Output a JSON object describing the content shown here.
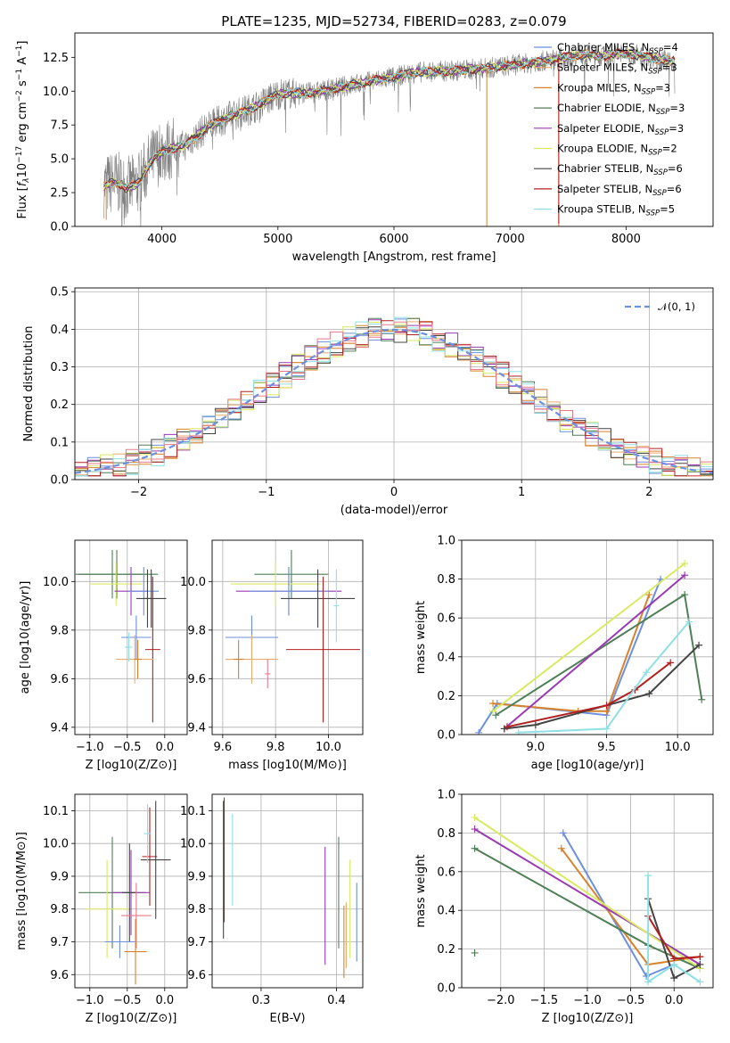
{
  "chart_data": [
    {
      "id": "spectrum",
      "type": "line",
      "title": "PLATE=1235, MJD=52734, FIBERID=0283, z=0.079",
      "xlabel": "wavelength [Angstrom, rest frame]",
      "ylabel": "Flux [f_λ 10^-17 erg cm^-2 s^-1 A^-1]",
      "ylabel_parts": {
        "a": "Flux [",
        "b": "f",
        "c": "λ",
        "d": "10",
        "e": "−17",
        "f": " erg cm",
        "g": "−2",
        "h": " s",
        "i": "−1",
        "j": " A",
        "k": "−1",
        "l": "]"
      },
      "xlim": [
        3250,
        8750
      ],
      "ylim": [
        0,
        14.3
      ],
      "xticks": [
        4000,
        5000,
        6000,
        7000,
        8000
      ],
      "yticks": [
        0.0,
        2.5,
        5.0,
        7.5,
        10.0,
        12.5
      ],
      "legend_position": "right",
      "legend": [
        {
          "name": "Chabrier MILES",
          "n": "4",
          "color": "#6c8fde"
        },
        {
          "name": "Salpeter MILES",
          "n": "3",
          "color": "#e8ac6c"
        },
        {
          "name": "Kroupa MILES",
          "n": "3",
          "color": "#d7822d"
        },
        {
          "name": "Chabrier ELODIE",
          "n": "3",
          "color": "#4f7f55"
        },
        {
          "name": "Salpeter ELODIE",
          "n": "3",
          "color": "#9a3ab3"
        },
        {
          "name": "Kroupa ELODIE",
          "n": "2",
          "color": "#d9ea62"
        },
        {
          "name": "Chabrier STELIB",
          "n": "6",
          "color": "#444444"
        },
        {
          "name": "Salpeter STELIB",
          "n": "6",
          "color": "#b22020"
        },
        {
          "name": "Kroupa STELIB",
          "n": "5",
          "color": "#8fe0e4"
        }
      ],
      "n_label": "N",
      "n_sub": "SSP",
      "data_color": "#808080",
      "continuum": {
        "x": [
          3500,
          3600,
          3700,
          3800,
          3900,
          4000,
          4100,
          4200,
          4400,
          4600,
          4800,
          5000,
          5300,
          5600,
          5900,
          6200,
          6500,
          6800,
          7000,
          7200,
          7400,
          7600,
          7800,
          8000,
          8200,
          8400
        ],
        "y": [
          3.0,
          3.3,
          2.8,
          3.2,
          4.8,
          5.5,
          5.8,
          6.0,
          7.4,
          8.2,
          8.8,
          9.8,
          9.9,
          10.4,
          10.9,
          11.4,
          11.5,
          11.7,
          11.9,
          12.1,
          12.4,
          12.7,
          12.6,
          12.8,
          12.5,
          12.2
        ]
      }
    },
    {
      "id": "residuals",
      "type": "bar",
      "xlabel": "(data-model)/error",
      "ylabel": "Normed distribution",
      "xlim": [
        -2.5,
        2.5
      ],
      "ylim": [
        0,
        0.51
      ],
      "xticks": [
        -2,
        -1,
        0,
        1,
        2
      ],
      "yticks": [
        0.0,
        0.1,
        0.2,
        0.3,
        0.4,
        0.5
      ],
      "legend": "𝒩(0, 1)",
      "legend_position": "top-right",
      "curve_color": "#6c8fde",
      "bin_edges_start": -2.5,
      "bin_width": 0.1,
      "base_values": [
        0.03,
        0.04,
        0.05,
        0.05,
        0.06,
        0.06,
        0.08,
        0.09,
        0.1,
        0.12,
        0.14,
        0.15,
        0.16,
        0.17,
        0.18,
        0.19,
        0.2,
        0.21,
        0.23,
        0.26,
        0.27,
        0.29,
        0.31,
        0.33,
        0.35,
        0.37,
        0.38,
        0.4,
        0.4,
        0.41,
        0.41,
        0.4,
        0.39,
        0.4,
        0.38,
        0.38,
        0.36,
        0.35,
        0.34,
        0.3,
        0.29,
        0.26,
        0.22,
        0.21,
        0.2,
        0.17,
        0.14,
        0.12,
        0.1,
        0.08,
        0.07,
        0.06,
        0.05,
        0.05,
        0.05,
        0.04,
        0.04,
        0.04,
        0.03,
        0.03,
        0.03,
        0.03,
        0.03,
        0.03,
        0.03,
        0.03,
        0.02,
        0.02,
        0.02,
        0.02,
        0.02,
        0.02,
        0.02,
        0.02,
        0.02,
        0.02,
        0.02,
        0.02,
        0.02,
        0.02,
        0.02,
        0.02,
        0.02,
        0.02,
        0.02,
        0.02,
        0.02,
        0.02,
        0.02,
        0.02,
        0.02,
        0.02,
        0.02,
        0.02,
        0.02,
        0.02,
        0.02,
        0.02,
        0.02,
        0.02
      ],
      "series_colors": [
        "#6c8fde",
        "#e8ac6c",
        "#d7822d",
        "#4f7f55",
        "#9a3ab3",
        "#d9ea62",
        "#444444",
        "#b22020",
        "#8fe0e4",
        "#e87a8a"
      ]
    },
    {
      "id": "age_vs_Z",
      "type": "scatter",
      "xlabel": "Z [log10(Z/Z⊙)]",
      "ylabel": "age  [log10(age/yr)]",
      "xlim": [
        -1.2,
        0.3
      ],
      "ylim": [
        9.37,
        10.17
      ],
      "xticks": [
        -1.0,
        -0.5,
        0.0
      ],
      "yticks": [
        9.4,
        9.6,
        9.8,
        10.0
      ],
      "points": [
        {
          "x": -0.7,
          "xerr": 0.45,
          "y": 10.03,
          "yerr": 0.1,
          "color": "#4f7f55"
        },
        {
          "x": -0.64,
          "xerr": 0.55,
          "y": 10.03,
          "yerr": 0.1,
          "color": "#4f7f55"
        },
        {
          "x": -0.65,
          "xerr": 0.35,
          "y": 9.99,
          "yerr": 0.09,
          "color": "#d9ea62"
        },
        {
          "x": -0.45,
          "xerr": 0.22,
          "y": 9.96,
          "yerr": 0.1,
          "color": "#9a3ab3"
        },
        {
          "x": -0.28,
          "xerr": 0.2,
          "y": 9.96,
          "yerr": 0.1,
          "color": "#6c8fde"
        },
        {
          "x": -0.18,
          "xerr": 0.2,
          "y": 9.93,
          "yerr": 0.12,
          "color": "#444444"
        },
        {
          "x": -0.23,
          "xerr": 0.05,
          "y": 9.93,
          "yerr": 0.12,
          "color": "#444444"
        },
        {
          "x": -0.38,
          "xerr": 0.2,
          "y": 9.77,
          "yerr": 0.09,
          "color": "#6c8fde"
        },
        {
          "x": -0.16,
          "xerr": 0.1,
          "y": 9.72,
          "yerr": 0.3,
          "color": "#b22020"
        },
        {
          "x": -0.4,
          "xerr": 0.25,
          "y": 9.68,
          "yerr": 0.1,
          "color": "#e8ac6c"
        },
        {
          "x": -0.36,
          "xerr": 0.05,
          "y": 9.68,
          "yerr": 0.08,
          "color": "#d7822d"
        },
        {
          "x": -0.48,
          "xerr": 0.05,
          "y": 9.73,
          "yerr": 0.06,
          "color": "#8fe0e4"
        }
      ]
    },
    {
      "id": "age_vs_mass",
      "type": "scatter",
      "xlabel": "mass [log10(M/M⊙)]",
      "xlim": [
        9.56,
        10.13
      ],
      "ylim": [
        9.37,
        10.17
      ],
      "xticks": [
        9.6,
        9.8,
        10.0
      ],
      "yticks": [
        9.4,
        9.6,
        9.8,
        10.0
      ],
      "points": [
        {
          "x": 9.86,
          "xerr": 0.14,
          "y": 10.03,
          "yerr": 0.1,
          "color": "#4f7f55"
        },
        {
          "x": 9.8,
          "xerr": 0.17,
          "y": 9.99,
          "yerr": 0.09,
          "color": "#d9ea62"
        },
        {
          "x": 9.85,
          "xerr": 0.2,
          "y": 9.96,
          "yerr": 0.1,
          "color": "#9a3ab3"
        },
        {
          "x": 9.85,
          "xerr": 0.15,
          "y": 9.96,
          "yerr": 0.1,
          "color": "#6c8fde"
        },
        {
          "x": 9.96,
          "xerr": 0.14,
          "y": 9.93,
          "yerr": 0.12,
          "color": "#444444"
        },
        {
          "x": 9.71,
          "xerr": 0.1,
          "y": 9.77,
          "yerr": 0.09,
          "color": "#6c8fde"
        },
        {
          "x": 9.98,
          "xerr": 0.14,
          "y": 9.72,
          "yerr": 0.3,
          "color": "#b22020"
        },
        {
          "x": 9.71,
          "xerr": 0.1,
          "y": 9.68,
          "yerr": 0.1,
          "color": "#e8ac6c"
        },
        {
          "x": 9.66,
          "xerr": 0.02,
          "y": 9.68,
          "yerr": 0.08,
          "color": "#d7822d"
        },
        {
          "x": 10.03,
          "xerr": 0.01,
          "y": 9.9,
          "yerr": 0.15,
          "color": "#8fe0e4"
        },
        {
          "x": 9.77,
          "xerr": 0.01,
          "y": 9.62,
          "yerr": 0.06,
          "color": "#e87a8a"
        }
      ]
    },
    {
      "id": "weight_vs_age",
      "type": "line",
      "xlabel": "age  [log10(age/yr)]",
      "ylabel": "mass weight",
      "xlim": [
        8.48,
        10.25
      ],
      "ylim": [
        0,
        1
      ],
      "xticks": [
        9.0,
        9.5,
        10.0
      ],
      "yticks": [
        0.0,
        0.2,
        0.4,
        0.6,
        0.8,
        1.0
      ],
      "series": [
        {
          "color": "#6c8fde",
          "x": [
            8.6,
            8.73,
            9.5,
            9.88
          ],
          "y": [
            0.01,
            0.16,
            0.1,
            0.8
          ]
        },
        {
          "color": "#d7822d",
          "x": [
            8.7,
            9.3,
            9.5,
            9.8
          ],
          "y": [
            0.16,
            0.12,
            0.12,
            0.72
          ]
        },
        {
          "color": "#4f7f55",
          "x": [
            8.72,
            10.05,
            10.17
          ],
          "y": [
            0.1,
            0.72,
            0.18
          ]
        },
        {
          "color": "#9a3ab3",
          "x": [
            8.78,
            10.05
          ],
          "y": [
            0.03,
            0.82
          ]
        },
        {
          "color": "#d9ea62",
          "x": [
            8.7,
            10.05
          ],
          "y": [
            0.12,
            0.88
          ]
        },
        {
          "color": "#444444",
          "x": [
            8.78,
            9.0,
            9.8,
            10.15
          ],
          "y": [
            0.03,
            0.05,
            0.21,
            0.46
          ]
        },
        {
          "color": "#b22020",
          "x": [
            8.8,
            9.5,
            9.7,
            9.95
          ],
          "y": [
            0.04,
            0.15,
            0.23,
            0.37
          ]
        },
        {
          "color": "#8fe0e4",
          "x": [
            8.88,
            9.5,
            9.78,
            10.08
          ],
          "y": [
            0.01,
            0.03,
            0.32,
            0.58
          ]
        }
      ]
    },
    {
      "id": "mass_vs_Z",
      "type": "scatter",
      "xlabel": "Z [log10(Z/Z⊙)]",
      "ylabel": "mass [log10(M/M⊙)]",
      "xlim": [
        -1.2,
        0.3
      ],
      "ylim": [
        9.56,
        10.15
      ],
      "xticks": [
        -1.0,
        -0.5,
        0.0
      ],
      "yticks": [
        9.6,
        9.7,
        9.8,
        9.9,
        10.0,
        10.1
      ],
      "points": [
        {
          "x": -0.7,
          "xerr": 0.45,
          "y": 9.85,
          "yerr": 0.17,
          "color": "#4f7f55"
        },
        {
          "x": -0.77,
          "xerr": 0.3,
          "y": 9.8,
          "yerr": 0.15,
          "color": "#d9ea62"
        },
        {
          "x": -0.45,
          "xerr": 0.25,
          "y": 9.85,
          "yerr": 0.13,
          "color": "#9a3ab3"
        },
        {
          "x": -0.47,
          "xerr": 0.1,
          "y": 9.85,
          "yerr": 0.15,
          "color": "#444444"
        },
        {
          "x": -0.38,
          "xerr": 0.2,
          "y": 9.78,
          "yerr": 0.1,
          "color": "#e87a8a"
        },
        {
          "x": -0.6,
          "xerr": 0.2,
          "y": 9.7,
          "yerr": 0.05,
          "color": "#6c8fde"
        },
        {
          "x": -0.39,
          "xerr": 0.15,
          "y": 9.67,
          "yerr": 0.1,
          "color": "#d7822d"
        },
        {
          "x": -0.2,
          "xerr": 0.1,
          "y": 9.96,
          "yerr": 0.15,
          "color": "#b22020"
        },
        {
          "x": -0.12,
          "xerr": 0.2,
          "y": 9.95,
          "yerr": 0.18,
          "color": "#444444"
        },
        {
          "x": -0.23,
          "xerr": 0.05,
          "y": 10.03,
          "yerr": 0.09,
          "color": "#8fe0e4"
        }
      ]
    },
    {
      "id": "mass_vs_ebv",
      "type": "scatter",
      "xlabel": "E(B-V)",
      "xlim": [
        0.235,
        0.435
      ],
      "ylim": [
        9.56,
        10.15
      ],
      "xticks": [
        0.3,
        0.4
      ],
      "yticks": [
        9.6,
        9.7,
        9.8,
        9.9,
        10.0,
        10.1
      ],
      "points": [
        {
          "x": 0.25,
          "xerr": 0,
          "y": 9.92,
          "yerr": 0.21,
          "color": "#444444"
        },
        {
          "x": 0.251,
          "xerr": 0,
          "y": 9.95,
          "yerr": 0.19,
          "color": "#b22020"
        },
        {
          "x": 0.262,
          "xerr": 0,
          "y": 9.95,
          "yerr": 0.14,
          "color": "#8fe0e4"
        },
        {
          "x": 0.385,
          "xerr": 0,
          "y": 9.81,
          "yerr": 0.18,
          "color": "#9a3ab3"
        },
        {
          "x": 0.403,
          "xerr": 0,
          "y": 9.85,
          "yerr": 0.17,
          "color": "#4f7f55"
        },
        {
          "x": 0.41,
          "xerr": 0,
          "y": 9.7,
          "yerr": 0.11,
          "color": "#d7822d"
        },
        {
          "x": 0.413,
          "xerr": 0,
          "y": 9.72,
          "yerr": 0.1,
          "color": "#e8ac6c"
        },
        {
          "x": 0.418,
          "xerr": 0,
          "y": 9.8,
          "yerr": 0.15,
          "color": "#d9ea62"
        },
        {
          "x": 0.427,
          "xerr": 0,
          "y": 9.76,
          "yerr": 0.12,
          "color": "#6c8fde"
        }
      ]
    },
    {
      "id": "weight_vs_Z",
      "type": "line",
      "xlabel": "Z [log10(Z/Z⊙)]",
      "ylabel": "mass weight",
      "xlim": [
        -2.45,
        0.45
      ],
      "ylim": [
        0,
        1
      ],
      "xticks": [
        -2.0,
        -1.5,
        -1.0,
        -0.5,
        0.0
      ],
      "yticks": [
        0.0,
        0.2,
        0.4,
        0.6,
        0.8,
        1.0
      ],
      "series": [
        {
          "color": "#6c8fde",
          "x": [
            -1.28,
            -0.32,
            0.0
          ],
          "y": [
            0.8,
            0.06,
            0.12
          ]
        },
        {
          "color": "#d7822d",
          "x": [
            -1.3,
            -0.3,
            0.3
          ],
          "y": [
            0.72,
            0.12,
            0.16
          ]
        },
        {
          "color": "#4f7f55",
          "x": [
            -2.3,
            -0.3,
            0.3
          ],
          "y": [
            0.72,
            0.22,
            0.1
          ]
        },
        {
          "color": "#9a3ab3",
          "x": [
            -2.3,
            0.3
          ],
          "y": [
            0.82,
            0.12
          ]
        },
        {
          "color": "#d9ea62",
          "x": [
            -2.3,
            0.3
          ],
          "y": [
            0.88,
            0.1
          ]
        },
        {
          "color": "#444444",
          "x": [
            -0.3,
            0.0,
            0.3
          ],
          "y": [
            0.46,
            0.05,
            0.12
          ]
        },
        {
          "color": "#b22020",
          "x": [
            -0.3,
            0.0,
            0.3
          ],
          "y": [
            0.37,
            0.15,
            0.16
          ]
        },
        {
          "color": "#8fe0e4",
          "x": [
            -0.3,
            -0.3,
            0.0,
            0.3
          ],
          "y": [
            0.58,
            0.03,
            0.12,
            0.03
          ]
        }
      ],
      "markers": [
        {
          "x": -2.3,
          "y": 0.18,
          "color": "#4f7f55"
        }
      ]
    }
  ]
}
